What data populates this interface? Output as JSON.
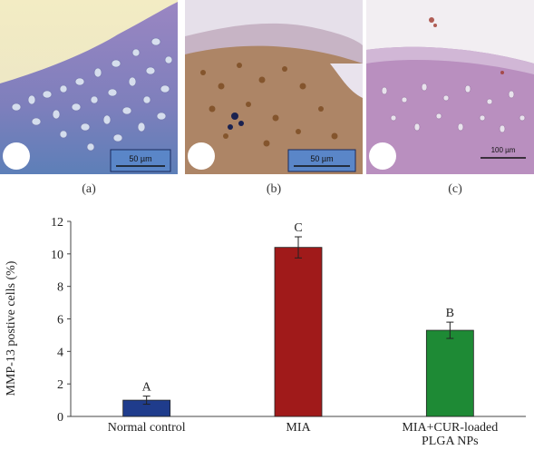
{
  "panels": [
    {
      "label": "(a)",
      "scale_bar": "50 µm",
      "color": "#8e8ac0"
    },
    {
      "label": "(b)",
      "scale_bar": "50 µm",
      "color": "#9b6f3e"
    },
    {
      "label": "(c)",
      "scale_bar": "100 µm",
      "color": "#b187b8"
    }
  ],
  "chart_data": {
    "type": "bar",
    "categories": [
      "Normal control",
      "MIA",
      "MIA+CUR-loaded\nPLGA NPs"
    ],
    "values": [
      1.0,
      10.4,
      5.3
    ],
    "errors": [
      0.25,
      0.65,
      0.5
    ],
    "significance": [
      "A",
      "C",
      "B"
    ],
    "colors": [
      "#1f3c8c",
      "#a01a1a",
      "#1e8a35"
    ],
    "ylabel": "MMP-13 postive cells (%)",
    "xlabel": "",
    "ylim": [
      0,
      12
    ],
    "yticks": [
      0,
      2,
      4,
      6,
      8,
      10,
      12
    ],
    "grid": false
  }
}
